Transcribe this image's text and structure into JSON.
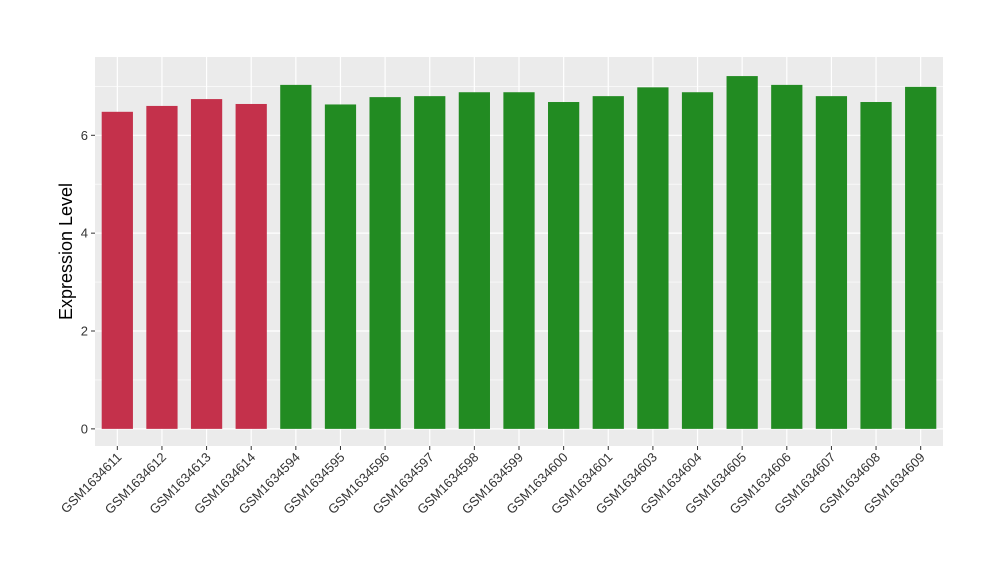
{
  "chart_data": {
    "type": "bar",
    "title": "",
    "xlabel": "",
    "ylabel": "Expression Level",
    "ylim": [
      -0.35,
      7.6
    ],
    "yticks": [
      0,
      2,
      4,
      6
    ],
    "grid": true,
    "categories": [
      "GSM1634611",
      "GSM1634612",
      "GSM1634613",
      "GSM1634614",
      "GSM1634594",
      "GSM1634595",
      "GSM1634596",
      "GSM1634597",
      "GSM1634598",
      "GSM1634599",
      "GSM1634600",
      "GSM1634601",
      "GSM1634603",
      "GSM1634604",
      "GSM1634605",
      "GSM1634606",
      "GSM1634607",
      "GSM1634608",
      "GSM1634609"
    ],
    "values": [
      6.48,
      6.6,
      6.74,
      6.64,
      7.03,
      6.63,
      6.78,
      6.8,
      6.88,
      6.88,
      6.68,
      6.8,
      6.98,
      6.88,
      7.21,
      7.03,
      6.8,
      6.68,
      6.99
    ],
    "group_colors": [
      "#c4314b",
      "#c4314b",
      "#c4314b",
      "#c4314b",
      "#228b22",
      "#228b22",
      "#228b22",
      "#228b22",
      "#228b22",
      "#228b22",
      "#228b22",
      "#228b22",
      "#228b22",
      "#228b22",
      "#228b22",
      "#228b22",
      "#228b22",
      "#228b22",
      "#228b22"
    ],
    "colors": {
      "panel_background": "#ebebeb",
      "grid_major": "#ffffff",
      "group_a": "#c4314b",
      "group_b": "#228b22"
    }
  }
}
